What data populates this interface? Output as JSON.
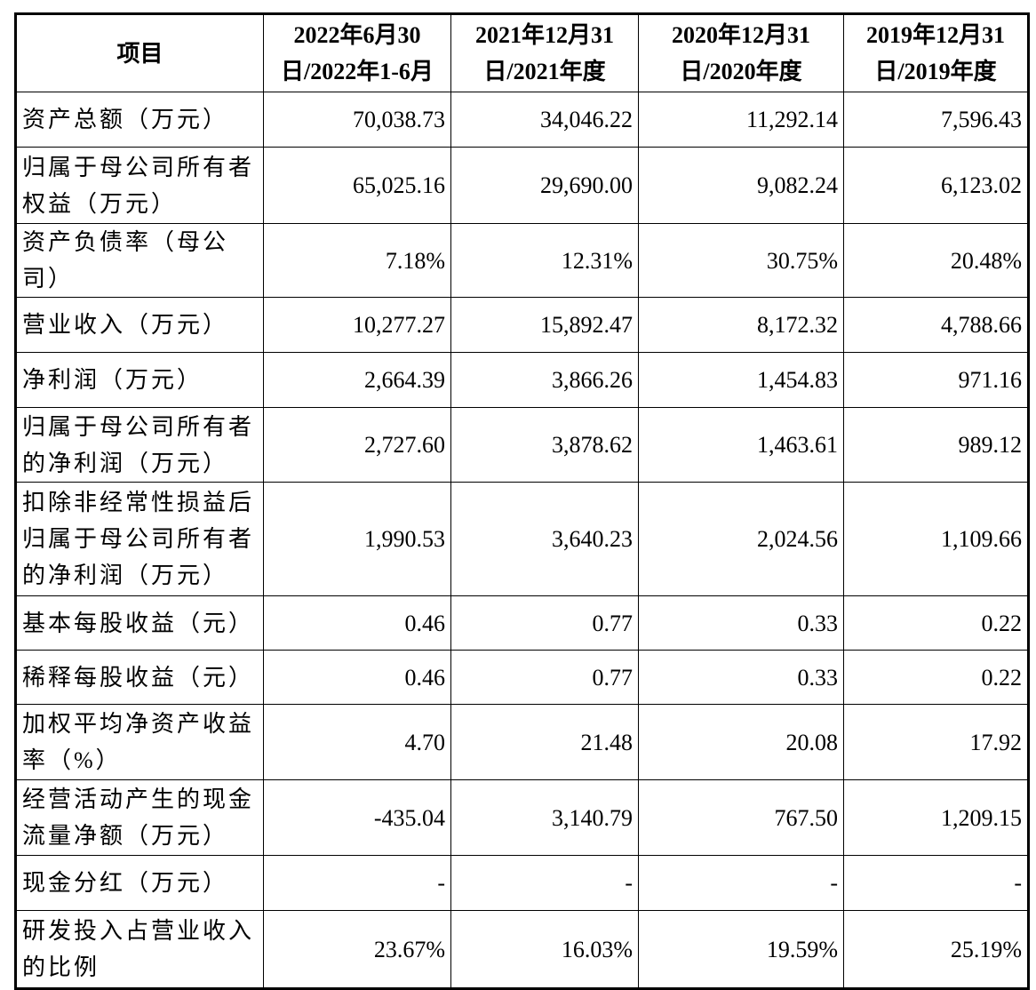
{
  "table": {
    "header": [
      [
        "项目"
      ],
      [
        "2022年6月30",
        "日/2022年1-6月"
      ],
      [
        "2021年12月31",
        "日/2021年度"
      ],
      [
        "2020年12月31",
        "日/2020年度"
      ],
      [
        "2019年12月31",
        "日/2019年度"
      ]
    ],
    "rows": [
      [
        "资产总额（万元）",
        "70,038.73",
        "34,046.22",
        "11,292.14",
        "7,596.43"
      ],
      [
        "归属于母公司所有者权益（万元）",
        "65,025.16",
        "29,690.00",
        "9,082.24",
        "6,123.02"
      ],
      [
        "资产负债率（母公司）",
        "7.18%",
        "12.31%",
        "30.75%",
        "20.48%"
      ],
      [
        "营业收入（万元）",
        "10,277.27",
        "15,892.47",
        "8,172.32",
        "4,788.66"
      ],
      [
        "净利润（万元）",
        "2,664.39",
        "3,866.26",
        "1,454.83",
        "971.16"
      ],
      [
        "归属于母公司所有者的净利润（万元）",
        "2,727.60",
        "3,878.62",
        "1,463.61",
        "989.12"
      ],
      [
        "扣除非经常性损益后归属于母公司所有者的净利润（万元）",
        "1,990.53",
        "3,640.23",
        "2,024.56",
        "1,109.66"
      ],
      [
        "基本每股收益（元）",
        "0.46",
        "0.77",
        "0.33",
        "0.22"
      ],
      [
        "稀释每股收益（元）",
        "0.46",
        "0.77",
        "0.33",
        "0.22"
      ],
      [
        "加权平均净资产收益率（%）",
        "4.70",
        "21.48",
        "20.08",
        "17.92"
      ],
      [
        "经营活动产生的现金流量净额（万元）",
        "-435.04",
        "3,140.79",
        "767.50",
        "1,209.15"
      ],
      [
        "现金分红（万元）",
        "-",
        "-",
        "-",
        "-"
      ],
      [
        "研发投入占营业收入的比例",
        "23.67%",
        "16.03%",
        "19.59%",
        "25.19%"
      ]
    ]
  }
}
